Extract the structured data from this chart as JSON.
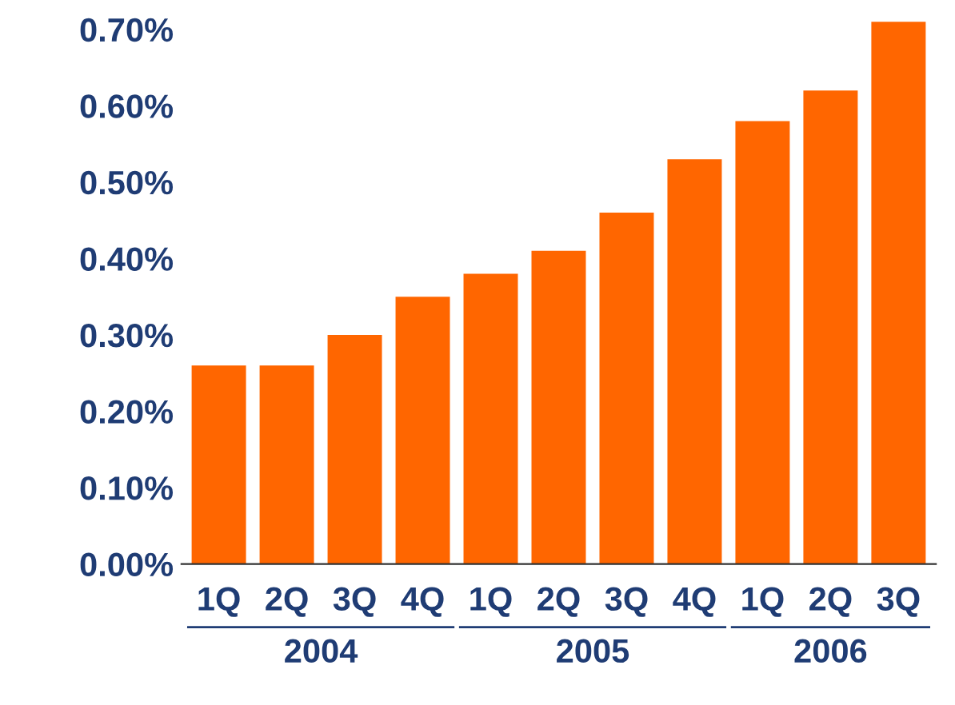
{
  "chart_data": {
    "type": "bar",
    "categories": [
      "1Q",
      "2Q",
      "3Q",
      "4Q",
      "1Q",
      "2Q",
      "3Q",
      "4Q",
      "1Q",
      "2Q",
      "3Q"
    ],
    "values": [
      0.26,
      0.26,
      0.3,
      0.35,
      0.38,
      0.41,
      0.46,
      0.53,
      0.58,
      0.62,
      0.71
    ],
    "color": "#ff6600",
    "ylim": [
      0,
      0.72
    ],
    "yticks": [
      {
        "value": 0,
        "label": "0.00%"
      },
      {
        "value": 0.1,
        "label": "0.10%"
      },
      {
        "value": 0.2,
        "label": "0.20%"
      },
      {
        "value": 0.3,
        "label": "0.30%"
      },
      {
        "value": 0.4,
        "label": "0.40%"
      },
      {
        "value": 0.5,
        "label": "0.50%"
      },
      {
        "value": 0.6,
        "label": "0.60%"
      },
      {
        "value": 0.7,
        "label": "0.70%"
      }
    ],
    "annotations": [
      "2004",
      "2005",
      "2006"
    ],
    "grid": false
  }
}
